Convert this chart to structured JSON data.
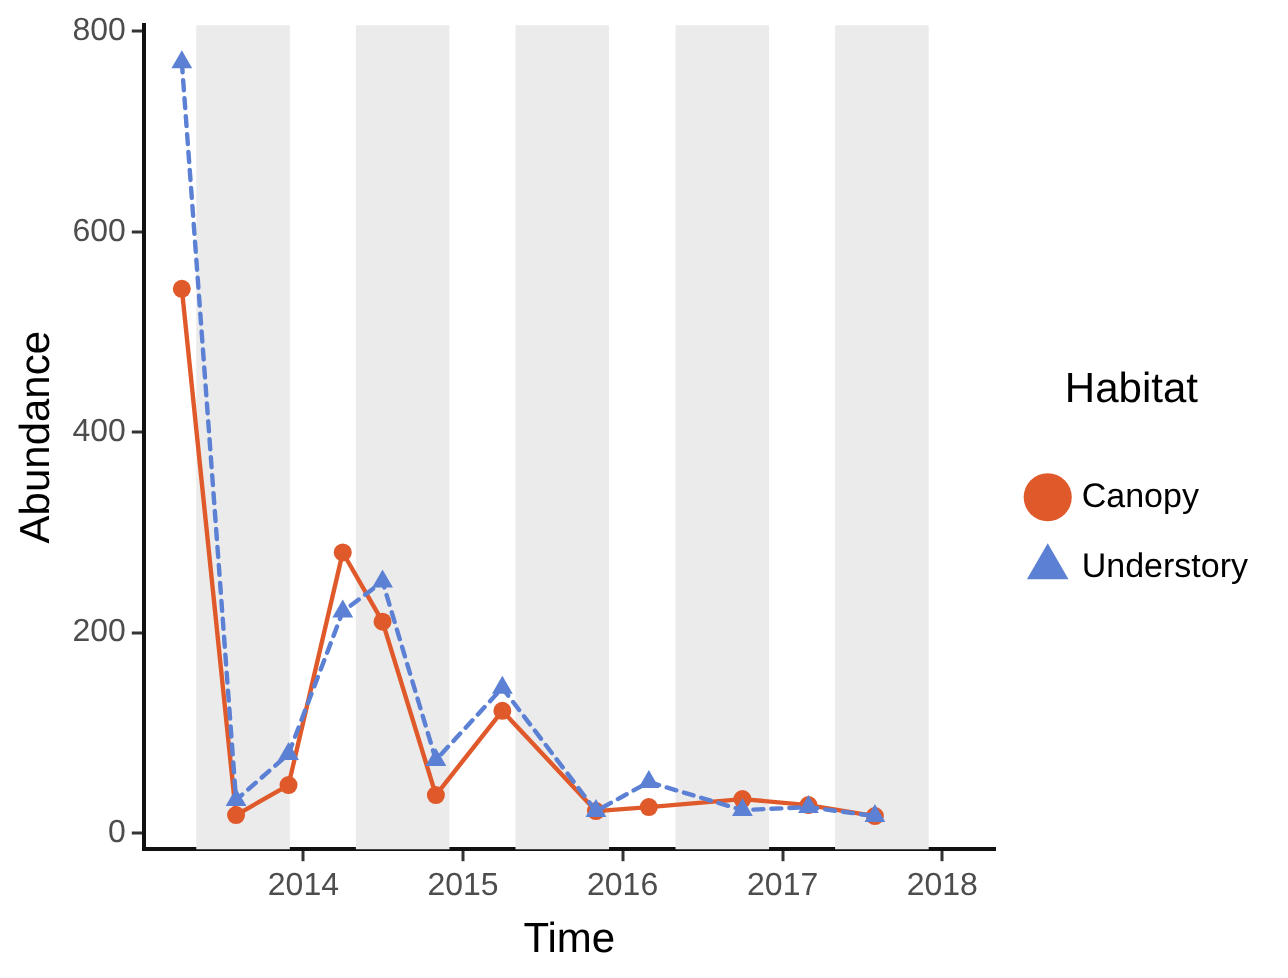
{
  "chart_data": {
    "type": "line",
    "xlabel": "Time",
    "ylabel": "Abundance",
    "legend_title": "Habitat",
    "legend": "right",
    "grid": false,
    "x": [
      "2013-03-29",
      "2013-07-31",
      "2013-11-28",
      "2014-04-01",
      "2014-07-01",
      "2014-10-31",
      "2015-04-01",
      "2015-11-01",
      "2016-03-01",
      "2016-10-01",
      "2017-03-01",
      "2017-07-31"
    ],
    "xlim": [
      "2013-01-01",
      "2018-05-01"
    ],
    "xticks": [
      "2014",
      "2015",
      "2016",
      "2017",
      "2018"
    ],
    "ylim": [
      -16,
      806
    ],
    "yticks": [
      0,
      200,
      400,
      600,
      800
    ],
    "series": [
      {
        "name": "Canopy",
        "color": "#e0592a",
        "marker": "circle",
        "line_style": "solid",
        "values": [
          543,
          18,
          48,
          280,
          211,
          38,
          122,
          22,
          26,
          34,
          28,
          17
        ]
      },
      {
        "name": "Understory",
        "color": "#5b80d4",
        "marker": "triangle",
        "line_style": "dashed",
        "values": [
          769,
          33,
          79,
          221,
          251,
          73,
          145,
          22,
          51,
          23,
          26,
          17
        ]
      }
    ],
    "bands": [
      {
        "axis": "x",
        "from": "2013-05-01",
        "to": "2013-12-01",
        "color": "#ebebeb"
      },
      {
        "axis": "x",
        "from": "2014-05-01",
        "to": "2014-12-01",
        "color": "#ebebeb"
      },
      {
        "axis": "x",
        "from": "2015-05-01",
        "to": "2015-12-01",
        "color": "#ebebeb"
      },
      {
        "axis": "x",
        "from": "2016-05-01",
        "to": "2016-12-01",
        "color": "#ebebeb"
      },
      {
        "axis": "x",
        "from": "2017-05-01",
        "to": "2017-12-01",
        "color": "#ebebeb"
      }
    ]
  }
}
